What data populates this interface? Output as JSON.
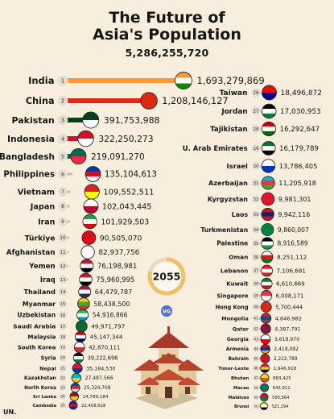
{
  "title_line1": "The Future of",
  "title_line2": "Asia's Population",
  "total": "5,286,255,720",
  "year": "2055",
  "logo_text": "VG",
  "footer": "UN.",
  "colors": {
    "background": "#f7eedd",
    "badge": "#e4ddd1",
    "year_ring": "#f1c06a",
    "year_ring_track": "#e6dcc9"
  },
  "chart_data": {
    "type": "bar",
    "title": "The Future of Asia's Population",
    "series": [
      {
        "values": [
          {
            "rank": 1,
            "country": "India",
            "value": 1693279869,
            "label": "1,693,279,869",
            "flag_colors": [
              "#ff9933",
              "#ffffff",
              "#138808"
            ]
          },
          {
            "rank": 2,
            "country": "China",
            "value": 1208146127,
            "label": "1,208,146,127",
            "flag_colors": [
              "#de2910"
            ]
          },
          {
            "rank": 3,
            "country": "Pakistan",
            "value": 391753988,
            "label": "391,753,988",
            "flag_colors": [
              "#01411c",
              "#ffffff"
            ]
          },
          {
            "rank": 4,
            "country": "Indonesia",
            "value": 322250273,
            "label": "322,250,273",
            "flag_colors": [
              "#ce1126",
              "#ffffff"
            ]
          },
          {
            "rank": 5,
            "country": "Bangladesh",
            "value": 219091270,
            "label": "219,091,270",
            "flag_colors": [
              "#006a4e",
              "#f42a41"
            ]
          },
          {
            "rank": 6,
            "country": "Philippines",
            "value": 135104613,
            "label": "135,104,613",
            "flag_colors": [
              "#0038a8",
              "#ce1126",
              "#ffffff"
            ]
          },
          {
            "rank": 7,
            "country": "Vietnam",
            "value": 109552511,
            "label": "109,552,511",
            "flag_colors": [
              "#da251d",
              "#ffff00"
            ]
          },
          {
            "rank": 8,
            "country": "Japan",
            "value": 102043445,
            "label": "102,043,445",
            "flag_colors": [
              "#ffffff",
              "#bc002d"
            ]
          },
          {
            "rank": 9,
            "country": "Iran",
            "value": 101929503,
            "label": "101,929,503",
            "flag_colors": [
              "#239f40",
              "#ffffff",
              "#da0000"
            ]
          },
          {
            "rank": 10,
            "country": "Türkiye",
            "value": 90505070,
            "label": "90,505,070",
            "flag_colors": [
              "#e30a17"
            ]
          },
          {
            "rank": 11,
            "country": "Afghanistan",
            "value": 82937756,
            "label": "82,937,756",
            "flag_colors": [
              "#ffffff"
            ]
          },
          {
            "rank": 12,
            "country": "Yemen",
            "value": 76198981,
            "label": "76,198,981",
            "flag_colors": [
              "#ce1126",
              "#ffffff",
              "#000000"
            ]
          },
          {
            "rank": 13,
            "country": "Iraq",
            "value": 75960995,
            "label": "75,960,995",
            "flag_colors": [
              "#ce1126",
              "#ffffff",
              "#000000"
            ]
          },
          {
            "rank": 14,
            "country": "Thailand",
            "value": 64479787,
            "label": "64,479,787",
            "flag_colors": [
              "#a51931",
              "#f4f5f8",
              "#2d2a4a"
            ]
          },
          {
            "rank": 15,
            "country": "Myanmar",
            "value": 58438500,
            "label": "58,438,500",
            "flag_colors": [
              "#fecb00",
              "#34b233",
              "#ea2839"
            ]
          },
          {
            "rank": 16,
            "country": "Uzbekistan",
            "value": 54916866,
            "label": "54,916,866",
            "flag_colors": [
              "#1eb53a",
              "#ffffff",
              "#0099b5"
            ]
          },
          {
            "rank": 17,
            "country": "Saudi Arabia",
            "value": 49971797,
            "label": "49,971,797",
            "flag_colors": [
              "#006c35"
            ]
          },
          {
            "rank": 18,
            "country": "Malaysia",
            "value": 45147344,
            "label": "45,147,344",
            "flag_colors": [
              "#cc0001",
              "#ffffff",
              "#010066"
            ]
          },
          {
            "rank": 19,
            "country": "South Korea",
            "value": 42870111,
            "label": "42,870,111",
            "flag_colors": [
              "#ffffff",
              "#cd2e3a"
            ]
          },
          {
            "rank": 20,
            "country": "Syria",
            "value": 39222698,
            "label": "39,222,698",
            "flag_colors": [
              "#000000",
              "#ffffff",
              "#007a3d"
            ]
          },
          {
            "rank": 21,
            "country": "Nepal",
            "value": 35184530,
            "label": "35,184,530",
            "flag_colors": [
              "#dc143c",
              "#003893"
            ]
          },
          {
            "rank": 22,
            "country": "Kazakhstan",
            "value": 27487566,
            "label": "27,487,566",
            "flag_colors": [
              "#00afca",
              "#fec50c"
            ]
          },
          {
            "rank": 23,
            "country": "North Korea",
            "value": 25324708,
            "label": "25,324,708",
            "flag_colors": [
              "#024fa2",
              "#ed1c27",
              "#ffffff"
            ]
          },
          {
            "rank": 24,
            "country": "Sri Lanka",
            "value": 24789184,
            "label": "24,789,184",
            "flag_colors": [
              "#8d153a",
              "#ffbe29"
            ]
          },
          {
            "rank": 25,
            "country": "Cambodia",
            "value": 22408628,
            "label": "22,408,628",
            "flag_colors": [
              "#032ea1",
              "#e00025",
              "#032ea1"
            ]
          },
          {
            "rank": 26,
            "country": "Taiwan",
            "value": 18496872,
            "label": "18,496,872",
            "flag_colors": [
              "#fe0000",
              "#000095"
            ]
          },
          {
            "rank": 27,
            "country": "Jordan",
            "value": 17030953,
            "label": "17,030,953",
            "flag_colors": [
              "#000000",
              "#ffffff",
              "#007a3d"
            ]
          },
          {
            "rank": 28,
            "country": "Tajikistan",
            "value": 16292647,
            "label": "16,292,647",
            "flag_colors": [
              "#cc0000",
              "#ffffff",
              "#006600"
            ]
          },
          {
            "rank": 29,
            "country": "U. Arab Emirates",
            "value": 16179789,
            "label": "16,179,789",
            "flag_colors": [
              "#00732f",
              "#ffffff",
              "#000000"
            ]
          },
          {
            "rank": 30,
            "country": "Israel",
            "value": 13786405,
            "label": "13,786,405",
            "flag_colors": [
              "#ffffff",
              "#0038b8"
            ]
          },
          {
            "rank": 31,
            "country": "Azerbaijan",
            "value": 11205918,
            "label": "11,205,918",
            "flag_colors": [
              "#00b5e2",
              "#ef3340",
              "#509e2f"
            ]
          },
          {
            "rank": 32,
            "country": "Kyrgyzstan",
            "value": 9981301,
            "label": "9,981,301",
            "flag_colors": [
              "#e8112d"
            ]
          },
          {
            "rank": 33,
            "country": "Laos",
            "value": 9942116,
            "label": "9,942,116",
            "flag_colors": [
              "#ce1126",
              "#002868",
              "#ce1126"
            ]
          },
          {
            "rank": 34,
            "country": "Turkmenistan",
            "value": 9860007,
            "label": "9,860,007",
            "flag_colors": [
              "#00843d"
            ]
          },
          {
            "rank": 35,
            "country": "Palestine",
            "value": 8916589,
            "label": "8,916,589",
            "flag_colors": [
              "#000000",
              "#ffffff",
              "#149954"
            ]
          },
          {
            "rank": 36,
            "country": "Oman",
            "value": 8251112,
            "label": "8,251,112",
            "flag_colors": [
              "#ffffff",
              "#db161b",
              "#008000"
            ]
          },
          {
            "rank": 37,
            "country": "Lebanon",
            "value": 7106681,
            "label": "7,106,681",
            "flag_colors": [
              "#ed1c24",
              "#ffffff",
              "#ed1c24"
            ]
          },
          {
            "rank": 38,
            "country": "Kuwait",
            "value": 6610669,
            "label": "6,610,669",
            "flag_colors": [
              "#007a3d",
              "#ffffff",
              "#ce1126"
            ]
          },
          {
            "rank": 39,
            "country": "Singapore",
            "value": 6008171,
            "label": "6,008,171",
            "flag_colors": [
              "#ef3340",
              "#ffffff"
            ]
          },
          {
            "rank": 40,
            "country": "Hong Kong",
            "value": 5700444,
            "label": "5,700,444",
            "flag_colors": [
              "#de2910"
            ]
          },
          {
            "rank": 41,
            "country": "Mongolia",
            "value": 4646982,
            "label": "4,646,982",
            "flag_colors": [
              "#c4272f",
              "#015197",
              "#c4272f"
            ]
          },
          {
            "rank": 42,
            "country": "Qatar",
            "value": 4387791,
            "label": "4,387,791",
            "flag_colors": [
              "#8a1538"
            ]
          },
          {
            "rank": 43,
            "country": "Georgia",
            "value": 3618970,
            "label": "3,618,970",
            "flag_colors": [
              "#ffffff",
              "#ff0000"
            ]
          },
          {
            "rank": 44,
            "country": "Armenia",
            "value": 2419092,
            "label": "2,419,092",
            "flag_colors": [
              "#d90012",
              "#0033a0",
              "#f2a800"
            ]
          },
          {
            "rank": 45,
            "country": "Bahrain",
            "value": 2222789,
            "label": "2,222,789",
            "flag_colors": [
              "#ce1126"
            ]
          },
          {
            "rank": 46,
            "country": "Timor-Leste",
            "value": 1946918,
            "label": "1,946,918",
            "flag_colors": [
              "#dc241f",
              "#ffc726",
              "#000000"
            ]
          },
          {
            "rank": 47,
            "country": "Bhutan",
            "value": 883425,
            "label": "883,425",
            "flag_colors": [
              "#ffd520",
              "#ff4e12"
            ]
          },
          {
            "rank": 48,
            "country": "Macao",
            "value": 643912,
            "label": "643,912",
            "flag_colors": [
              "#00785e"
            ]
          },
          {
            "rank": 49,
            "country": "Maldives",
            "value": 595564,
            "label": "595,564",
            "flag_colors": [
              "#d21034",
              "#007e3a"
            ]
          },
          {
            "rank": 50,
            "country": "Brunei",
            "value": 521294,
            "label": "521,294",
            "flag_colors": [
              "#f7e017",
              "#ffffff",
              "#000000"
            ]
          }
        ]
      }
    ]
  }
}
